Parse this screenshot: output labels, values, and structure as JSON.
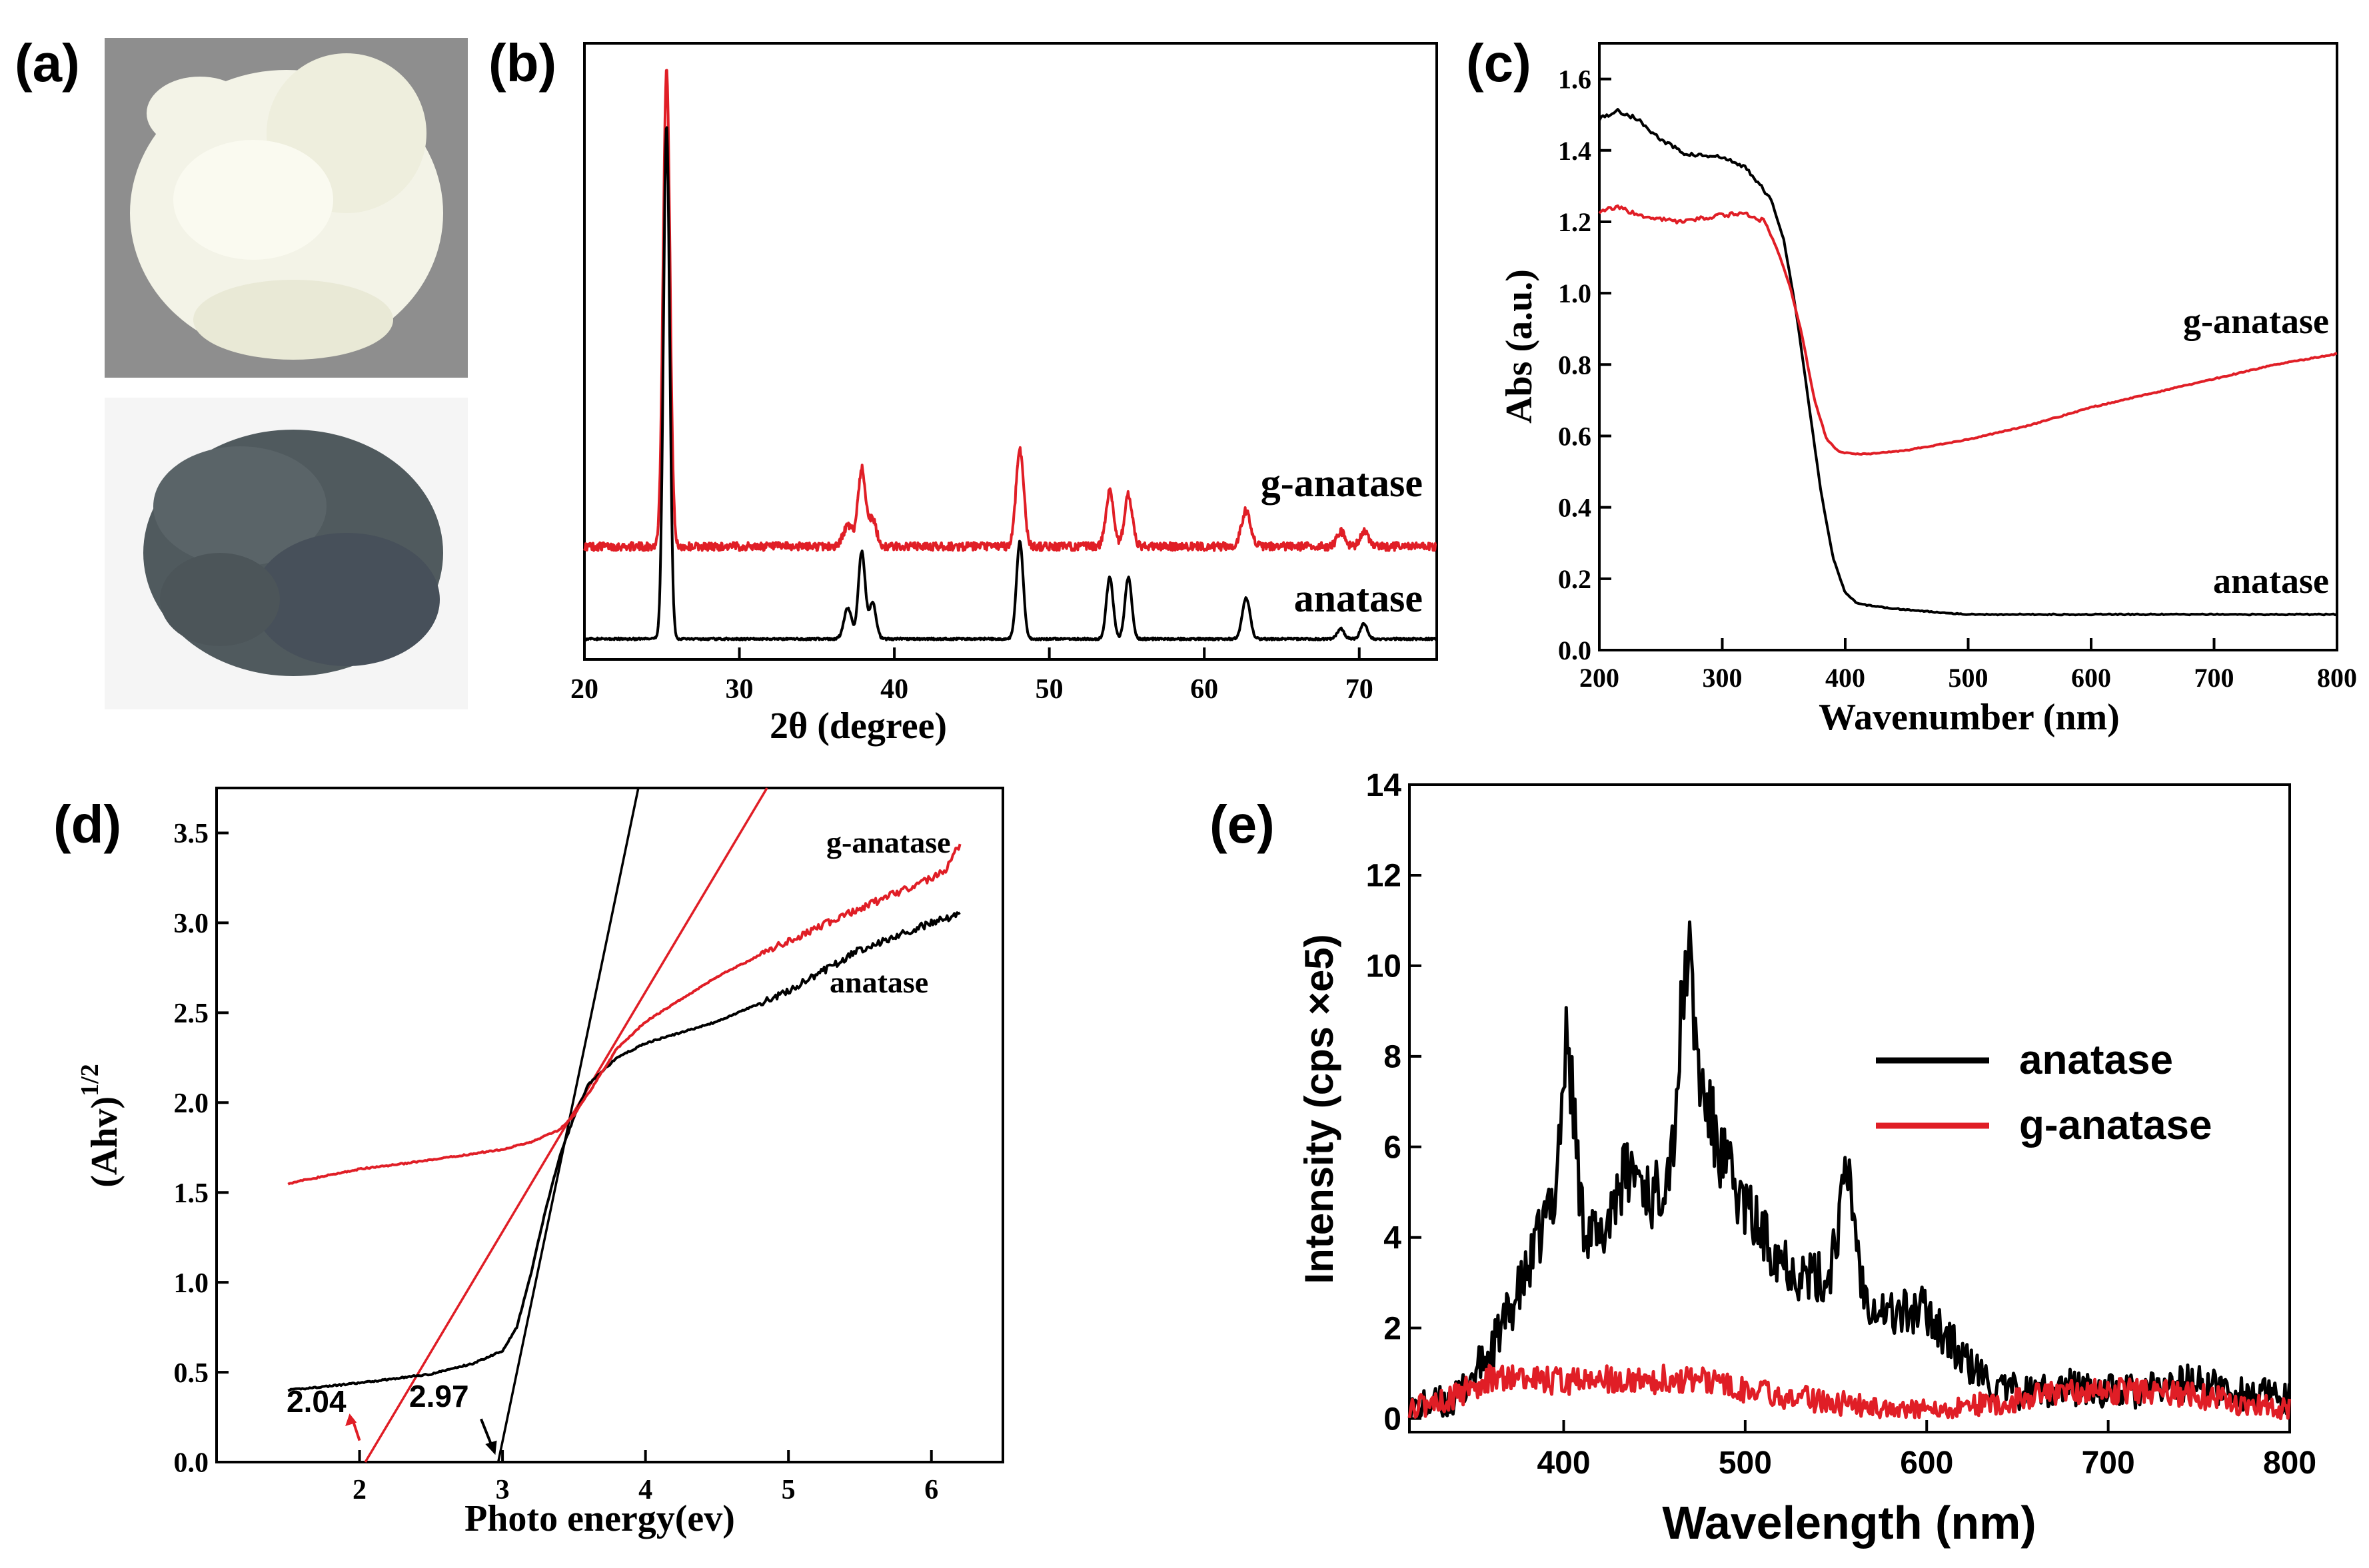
{
  "panel_labels": [
    "(a)",
    "(b)",
    "(c)",
    "(d)",
    "(e)"
  ],
  "colors": {
    "black": "#000000",
    "red": "#e01e26",
    "powder_white": "#f2f2e6",
    "powder_gray": "#4d5559",
    "photo_bg": "#8e8e8e"
  },
  "chart_data": [
    {
      "id": "b",
      "type": "line",
      "title": "",
      "xlabel": "2θ (degree)",
      "ylabel": "",
      "xlim": [
        20,
        75
      ],
      "ylim": [
        0,
        1.2
      ],
      "xticks": [
        20,
        30,
        40,
        50,
        60,
        70
      ],
      "yticks": [],
      "series": [
        {
          "name": "g-anatase",
          "color": "#e01e26",
          "offset": 0.22,
          "noise": 0.008,
          "peaks": [
            {
              "x": 25.3,
              "h": 0.93,
              "w": 0.22
            },
            {
              "x": 37.0,
              "h": 0.04,
              "w": 0.3
            },
            {
              "x": 37.9,
              "h": 0.15,
              "w": 0.25
            },
            {
              "x": 38.6,
              "h": 0.05,
              "w": 0.25
            },
            {
              "x": 48.1,
              "h": 0.19,
              "w": 0.25
            },
            {
              "x": 53.9,
              "h": 0.11,
              "w": 0.25
            },
            {
              "x": 55.1,
              "h": 0.1,
              "w": 0.25
            },
            {
              "x": 62.7,
              "h": 0.07,
              "w": 0.3
            },
            {
              "x": 68.8,
              "h": 0.03,
              "w": 0.25
            },
            {
              "x": 70.3,
              "h": 0.03,
              "w": 0.25
            }
          ]
        },
        {
          "name": "anatase",
          "color": "#000000",
          "offset": 0.04,
          "noise": 0.002,
          "peaks": [
            {
              "x": 25.3,
              "h": 1.0,
              "w": 0.2
            },
            {
              "x": 37.0,
              "h": 0.06,
              "w": 0.25
            },
            {
              "x": 37.9,
              "h": 0.17,
              "w": 0.22
            },
            {
              "x": 38.6,
              "h": 0.07,
              "w": 0.22
            },
            {
              "x": 48.1,
              "h": 0.19,
              "w": 0.22
            },
            {
              "x": 53.9,
              "h": 0.12,
              "w": 0.22
            },
            {
              "x": 55.1,
              "h": 0.12,
              "w": 0.22
            },
            {
              "x": 62.7,
              "h": 0.08,
              "w": 0.25
            },
            {
              "x": 68.8,
              "h": 0.02,
              "w": 0.22
            },
            {
              "x": 70.3,
              "h": 0.03,
              "w": 0.22
            }
          ]
        }
      ],
      "annotations": [
        "g-anatase",
        "anatase"
      ]
    },
    {
      "id": "c",
      "type": "line",
      "title": "",
      "xlabel": "Wavenumber (nm)",
      "ylabel": "Abs (a.u.)",
      "xlim": [
        200,
        800
      ],
      "ylim": [
        0.0,
        1.7
      ],
      "xticks": [
        200,
        300,
        400,
        500,
        600,
        700,
        800
      ],
      "yticks": [
        0.0,
        0.2,
        0.4,
        0.6,
        0.8,
        1.0,
        1.2,
        1.4,
        1.6
      ],
      "series": [
        {
          "name": "anatase",
          "color": "#000000",
          "x": [
            200,
            215,
            230,
            250,
            270,
            300,
            320,
            340,
            350,
            360,
            370,
            380,
            390,
            400,
            410,
            430,
            460,
            500,
            550,
            600,
            650,
            700,
            750,
            800
          ],
          "y": [
            1.49,
            1.51,
            1.49,
            1.43,
            1.39,
            1.38,
            1.35,
            1.26,
            1.15,
            0.95,
            0.7,
            0.45,
            0.26,
            0.16,
            0.13,
            0.12,
            0.11,
            0.1,
            0.1,
            0.1,
            0.1,
            0.1,
            0.1,
            0.1
          ]
        },
        {
          "name": "g-anatase",
          "color": "#e01e26",
          "x": [
            200,
            215,
            240,
            270,
            300,
            320,
            335,
            345,
            355,
            365,
            375,
            385,
            395,
            405,
            420,
            450,
            500,
            550,
            600,
            650,
            700,
            750,
            800
          ],
          "y": [
            1.23,
            1.24,
            1.21,
            1.2,
            1.22,
            1.22,
            1.2,
            1.12,
            1.02,
            0.88,
            0.7,
            0.59,
            0.555,
            0.55,
            0.55,
            0.56,
            0.59,
            0.63,
            0.68,
            0.72,
            0.76,
            0.8,
            0.83
          ]
        }
      ],
      "annotations": [
        "g-anatase",
        "anatase"
      ]
    },
    {
      "id": "d",
      "type": "line",
      "title": "",
      "xlabel": "Photo energy(ev)",
      "ylabel": "(Ahv)",
      "ylabel_sup": "1/2",
      "xlim": [
        1.0,
        6.5
      ],
      "ylim": [
        0.0,
        3.75
      ],
      "xticks": [
        2,
        3,
        4,
        5,
        6
      ],
      "yticks": [
        0.0,
        0.5,
        1.0,
        1.5,
        2.0,
        2.5,
        3.0,
        3.5
      ],
      "series": [
        {
          "name": "anatase",
          "color": "#000000",
          "x": [
            1.5,
            2.0,
            2.5,
            2.8,
            3.0,
            3.1,
            3.2,
            3.3,
            3.4,
            3.5,
            3.6,
            3.8,
            4.0,
            4.5,
            5.0,
            5.5,
            6.0,
            6.2
          ],
          "y": [
            0.4,
            0.44,
            0.49,
            0.55,
            0.62,
            0.75,
            1.05,
            1.4,
            1.7,
            1.92,
            2.1,
            2.25,
            2.33,
            2.45,
            2.62,
            2.85,
            3.0,
            3.05
          ]
        },
        {
          "name": "g-anatase",
          "color": "#e01e26",
          "x": [
            1.5,
            2.0,
            2.5,
            3.0,
            3.2,
            3.4,
            3.5,
            3.6,
            3.8,
            4.0,
            4.5,
            5.0,
            5.5,
            6.0,
            6.1,
            6.2
          ],
          "y": [
            1.55,
            1.63,
            1.68,
            1.74,
            1.78,
            1.85,
            1.93,
            2.05,
            2.3,
            2.45,
            2.7,
            2.9,
            3.08,
            3.25,
            3.3,
            3.44
          ]
        }
      ],
      "tangents": [
        {
          "color": "#000000",
          "x": [
            2.97,
            3.95
          ],
          "y": [
            0.0,
            3.75
          ]
        },
        {
          "color": "#e01e26",
          "x": [
            2.04,
            4.85
          ],
          "y": [
            0.0,
            3.75
          ]
        }
      ],
      "annotations": [
        {
          "text": "2.04",
          "color": "#e01e26"
        },
        {
          "text": "2.97",
          "color": "#000000"
        },
        {
          "text": "g-anatase"
        },
        {
          "text": "anatase"
        }
      ]
    },
    {
      "id": "e",
      "type": "line",
      "title": "",
      "xlabel": "Wavelength (nm)",
      "ylabel": "Intensity (cps ×e5)",
      "xlim": [
        315,
        800
      ],
      "ylim": [
        -0.3,
        14
      ],
      "xticks": [
        400,
        500,
        600,
        700,
        800
      ],
      "yticks": [
        0,
        2,
        4,
        6,
        8,
        10,
        12,
        14
      ],
      "series": [
        {
          "name": "anatase",
          "color": "#000000",
          "x": [
            315,
            340,
            360,
            380,
            395,
            402,
            410,
            420,
            430,
            440,
            450,
            460,
            468,
            475,
            485,
            495,
            510,
            530,
            545,
            557,
            565,
            580,
            600,
            620,
            640,
            660,
            680,
            700,
            720,
            745,
            770,
            800
          ],
          "y": [
            0.2,
            0.4,
            1.5,
            3.2,
            5.0,
            8.5,
            4.5,
            3.8,
            5.2,
            5.5,
            4.8,
            6.0,
            10.5,
            7.5,
            6.0,
            5.0,
            4.0,
            3.2,
            3.0,
            5.5,
            2.8,
            2.3,
            2.4,
            1.3,
            0.6,
            0.6,
            0.7,
            0.6,
            0.6,
            0.8,
            0.6,
            0.4
          ],
          "noise": 0.35
        },
        {
          "name": "g-anatase",
          "color": "#e01e26",
          "x": [
            315,
            340,
            360,
            380,
            400,
            420,
            440,
            460,
            480,
            500,
            520,
            540,
            560,
            580,
            600,
            630,
            660,
            690,
            720,
            750,
            780,
            800
          ],
          "y": [
            0.2,
            0.5,
            0.9,
            0.9,
            0.8,
            0.9,
            0.8,
            0.9,
            0.8,
            0.6,
            0.5,
            0.4,
            0.3,
            0.2,
            0.2,
            0.3,
            0.5,
            0.6,
            0.6,
            0.5,
            0.3,
            0.2
          ],
          "noise": 0.25
        }
      ],
      "legend": [
        {
          "label": "anatase",
          "color": "#000000"
        },
        {
          "label": "g-anatase",
          "color": "#e01e26"
        }
      ]
    }
  ]
}
